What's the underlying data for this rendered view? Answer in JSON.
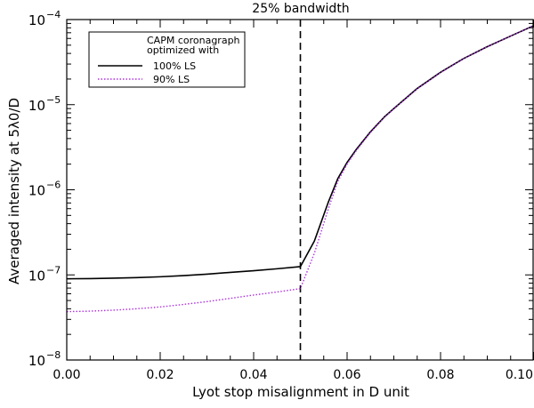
{
  "chart_data": {
    "type": "line",
    "title": "25% bandwidth",
    "xlabel": "Lyot stop misalignment in D unit",
    "ylabel": "Averaged intensity at 5λ0/D",
    "xlim": [
      0.0,
      0.1
    ],
    "ylim": [
      1e-08,
      0.0001
    ],
    "yscale": "log",
    "grid": false,
    "x_ticks": [
      "0.00",
      "0.02",
      "0.04",
      "0.06",
      "0.08",
      "0.10"
    ],
    "y_ticks": [
      {
        "base": "10",
        "exp": "−8"
      },
      {
        "base": "10",
        "exp": "−7"
      },
      {
        "base": "10",
        "exp": "−6"
      },
      {
        "base": "10",
        "exp": "−5"
      },
      {
        "base": "10",
        "exp": "−4"
      }
    ],
    "annotations": [
      {
        "type": "vertical-dashed-line",
        "x": 0.05
      }
    ],
    "legend": {
      "position": "top-left",
      "header": [
        "CAPM coronagraph",
        "optimized with"
      ]
    },
    "series": [
      {
        "name": "100% LS",
        "color": "#000000",
        "linestyle": "solid",
        "x": [
          0.0,
          0.005,
          0.01,
          0.015,
          0.02,
          0.025,
          0.03,
          0.035,
          0.04,
          0.045,
          0.05,
          0.053,
          0.056,
          0.058,
          0.06,
          0.062,
          0.065,
          0.068,
          0.07,
          0.075,
          0.08,
          0.085,
          0.09,
          0.095,
          0.1
        ],
        "y": [
          9e-08,
          9.05e-08,
          9.15e-08,
          9.3e-08,
          9.5e-08,
          9.8e-08,
          1.02e-07,
          1.07e-07,
          1.12e-07,
          1.18e-07,
          1.25e-07,
          2.5e-07,
          7.2e-07,
          1.35e-06,
          2.1e-06,
          3e-06,
          4.8e-06,
          7.2e-06,
          9e-06,
          1.55e-05,
          2.4e-05,
          3.5e-05,
          4.8e-05,
          6.4e-05,
          8.5e-05
        ]
      },
      {
        "name": "90% LS",
        "color": "#b030e0",
        "linestyle": "dotted",
        "x": [
          0.0,
          0.005,
          0.01,
          0.015,
          0.02,
          0.025,
          0.03,
          0.035,
          0.04,
          0.045,
          0.05,
          0.053,
          0.056,
          0.058,
          0.06,
          0.062,
          0.065,
          0.068,
          0.07,
          0.075,
          0.08,
          0.085,
          0.09,
          0.095,
          0.1
        ],
        "y": [
          3.7e-08,
          3.75e-08,
          3.85e-08,
          4e-08,
          4.2e-08,
          4.5e-08,
          4.85e-08,
          5.3e-08,
          5.8e-08,
          6.3e-08,
          6.9e-08,
          1.8e-07,
          6e-07,
          1.25e-06,
          2e-06,
          2.9e-06,
          4.7e-06,
          7.1e-06,
          8.9e-06,
          1.53e-05,
          2.38e-05,
          3.48e-05,
          4.78e-05,
          6.38e-05,
          8.5e-05
        ]
      }
    ]
  }
}
